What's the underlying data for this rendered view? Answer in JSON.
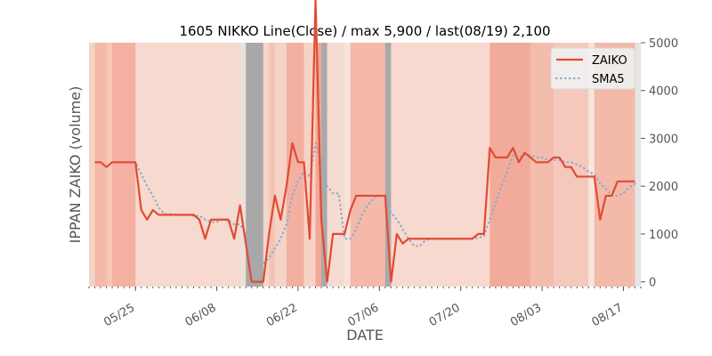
{
  "chart_data": {
    "type": "line",
    "title": "1605 NIKKO Line(Close) / max 5,900 / last(08/19) 2,100",
    "xlabel": "DATE",
    "ylabel": "IPPAN ZAIKO (volume)",
    "ylim": [
      -100,
      5000
    ],
    "yticks": [
      0,
      1000,
      2000,
      3000,
      4000,
      5000
    ],
    "ytick_labels": [
      "0",
      "1000",
      "2000",
      "3000",
      "4000",
      "5000"
    ],
    "y_axis_side": "right",
    "xlim": [
      "2020-05-17",
      "2020-08-20"
    ],
    "xticks": [
      "2020-05-25",
      "2020-06-08",
      "2020-06-22",
      "2020-07-06",
      "2020-07-20",
      "2020-08-03",
      "2020-08-17"
    ],
    "xtick_labels": [
      "05/25",
      "06/08",
      "06/22",
      "07/06",
      "07/20",
      "08/03",
      "08/17"
    ],
    "grid": false,
    "legend_position": "top-right",
    "background_color": "#e5e5e5",
    "series": [
      {
        "name": "ZAIKO",
        "color": "#e24a33",
        "style": "solid",
        "points": [
          [
            "2020-05-18",
            2500
          ],
          [
            "2020-05-19",
            2500
          ],
          [
            "2020-05-20",
            2400
          ],
          [
            "2020-05-21",
            2500
          ],
          [
            "2020-05-22",
            2500
          ],
          [
            "2020-05-23",
            2500
          ],
          [
            "2020-05-24",
            2500
          ],
          [
            "2020-05-25",
            2500
          ],
          [
            "2020-05-26",
            1500
          ],
          [
            "2020-05-27",
            1300
          ],
          [
            "2020-05-28",
            1500
          ],
          [
            "2020-05-29",
            1400
          ],
          [
            "2020-05-30",
            1400
          ],
          [
            "2020-05-31",
            1400
          ],
          [
            "2020-06-01",
            1400
          ],
          [
            "2020-06-02",
            1400
          ],
          [
            "2020-06-03",
            1400
          ],
          [
            "2020-06-04",
            1400
          ],
          [
            "2020-06-05",
            1300
          ],
          [
            "2020-06-06",
            900
          ],
          [
            "2020-06-07",
            1300
          ],
          [
            "2020-06-08",
            1300
          ],
          [
            "2020-06-09",
            1300
          ],
          [
            "2020-06-10",
            1300
          ],
          [
            "2020-06-11",
            900
          ],
          [
            "2020-06-12",
            1600
          ],
          [
            "2020-06-13",
            800
          ],
          [
            "2020-06-14",
            0
          ],
          [
            "2020-06-15",
            0
          ],
          [
            "2020-06-16",
            0
          ],
          [
            "2020-06-17",
            1000
          ],
          [
            "2020-06-18",
            1800
          ],
          [
            "2020-06-19",
            1300
          ],
          [
            "2020-06-20",
            2000
          ],
          [
            "2020-06-21",
            2900
          ],
          [
            "2020-06-22",
            2500
          ],
          [
            "2020-06-23",
            2500
          ],
          [
            "2020-06-24",
            900
          ],
          [
            "2020-06-25",
            5900
          ],
          [
            "2020-06-26",
            1300
          ],
          [
            "2020-06-27",
            0
          ],
          [
            "2020-06-28",
            1000
          ],
          [
            "2020-06-29",
            1000
          ],
          [
            "2020-06-30",
            1000
          ],
          [
            "2020-07-01",
            1500
          ],
          [
            "2020-07-02",
            1800
          ],
          [
            "2020-07-03",
            1800
          ],
          [
            "2020-07-04",
            1800
          ],
          [
            "2020-07-05",
            1800
          ],
          [
            "2020-07-06",
            1800
          ],
          [
            "2020-07-07",
            1800
          ],
          [
            "2020-07-08",
            0
          ],
          [
            "2020-07-09",
            1000
          ],
          [
            "2020-07-10",
            800
          ],
          [
            "2020-07-11",
            900
          ],
          [
            "2020-07-12",
            900
          ],
          [
            "2020-07-13",
            900
          ],
          [
            "2020-07-14",
            900
          ],
          [
            "2020-07-15",
            900
          ],
          [
            "2020-07-16",
            900
          ],
          [
            "2020-07-17",
            900
          ],
          [
            "2020-07-18",
            900
          ],
          [
            "2020-07-19",
            900
          ],
          [
            "2020-07-20",
            900
          ],
          [
            "2020-07-21",
            900
          ],
          [
            "2020-07-22",
            900
          ],
          [
            "2020-07-23",
            1000
          ],
          [
            "2020-07-24",
            1000
          ],
          [
            "2020-07-25",
            2800
          ],
          [
            "2020-07-26",
            2600
          ],
          [
            "2020-07-27",
            2600
          ],
          [
            "2020-07-28",
            2600
          ],
          [
            "2020-07-29",
            2800
          ],
          [
            "2020-07-30",
            2500
          ],
          [
            "2020-07-31",
            2700
          ],
          [
            "2020-08-01",
            2600
          ],
          [
            "2020-08-02",
            2500
          ],
          [
            "2020-08-03",
            2500
          ],
          [
            "2020-08-04",
            2500
          ],
          [
            "2020-08-05",
            2600
          ],
          [
            "2020-08-06",
            2600
          ],
          [
            "2020-08-07",
            2400
          ],
          [
            "2020-08-08",
            2400
          ],
          [
            "2020-08-09",
            2200
          ],
          [
            "2020-08-10",
            2200
          ],
          [
            "2020-08-11",
            2200
          ],
          [
            "2020-08-12",
            2200
          ],
          [
            "2020-08-13",
            1300
          ],
          [
            "2020-08-14",
            1800
          ],
          [
            "2020-08-15",
            1800
          ],
          [
            "2020-08-16",
            2100
          ],
          [
            "2020-08-17",
            2100
          ],
          [
            "2020-08-18",
            2100
          ],
          [
            "2020-08-19",
            2100
          ]
        ]
      },
      {
        "name": "SMA5",
        "color": "#8eaacb",
        "style": "dotted",
        "points": [
          [
            "2020-05-24",
            2500
          ],
          [
            "2020-05-25",
            2500
          ],
          [
            "2020-05-26",
            2250
          ],
          [
            "2020-05-27",
            2000
          ],
          [
            "2020-05-28",
            1800
          ],
          [
            "2020-05-29",
            1550
          ],
          [
            "2020-05-30",
            1420
          ],
          [
            "2020-05-31",
            1420
          ],
          [
            "2020-06-01",
            1400
          ],
          [
            "2020-06-02",
            1400
          ],
          [
            "2020-06-03",
            1400
          ],
          [
            "2020-06-04",
            1380
          ],
          [
            "2020-06-05",
            1380
          ],
          [
            "2020-06-06",
            1300
          ],
          [
            "2020-06-07",
            1250
          ],
          [
            "2020-06-08",
            1250
          ],
          [
            "2020-06-09",
            1300
          ],
          [
            "2020-06-10",
            1280
          ],
          [
            "2020-06-11",
            1200
          ],
          [
            "2020-06-12",
            1200
          ],
          [
            "2020-06-13",
            1000
          ],
          [
            "2020-06-14",
            700
          ],
          [
            "2020-06-15",
            500
          ],
          [
            "2020-06-16",
            380
          ],
          [
            "2020-06-17",
            500
          ],
          [
            "2020-06-18",
            700
          ],
          [
            "2020-06-19",
            900
          ],
          [
            "2020-06-20",
            1200
          ],
          [
            "2020-06-21",
            1800
          ],
          [
            "2020-06-22",
            2100
          ],
          [
            "2020-06-23",
            2300
          ],
          [
            "2020-06-24",
            2200
          ],
          [
            "2020-06-25",
            2900
          ],
          [
            "2020-06-26",
            2500
          ],
          [
            "2020-06-27",
            2000
          ],
          [
            "2020-06-28",
            1850
          ],
          [
            "2020-06-29",
            1850
          ],
          [
            "2020-06-30",
            900
          ],
          [
            "2020-07-01",
            900
          ],
          [
            "2020-07-02",
            1100
          ],
          [
            "2020-07-03",
            1400
          ],
          [
            "2020-07-04",
            1600
          ],
          [
            "2020-07-05",
            1750
          ],
          [
            "2020-07-06",
            1800
          ],
          [
            "2020-07-07",
            1800
          ],
          [
            "2020-07-08",
            1450
          ],
          [
            "2020-07-09",
            1300
          ],
          [
            "2020-07-10",
            1100
          ],
          [
            "2020-07-11",
            900
          ],
          [
            "2020-07-12",
            750
          ],
          [
            "2020-07-13",
            750
          ],
          [
            "2020-07-14",
            880
          ],
          [
            "2020-07-15",
            900
          ],
          [
            "2020-07-16",
            900
          ],
          [
            "2020-07-17",
            900
          ],
          [
            "2020-07-18",
            900
          ],
          [
            "2020-07-19",
            900
          ],
          [
            "2020-07-20",
            900
          ],
          [
            "2020-07-21",
            900
          ],
          [
            "2020-07-22",
            900
          ],
          [
            "2020-07-23",
            920
          ],
          [
            "2020-07-24",
            950
          ],
          [
            "2020-07-25",
            1300
          ],
          [
            "2020-07-26",
            1650
          ],
          [
            "2020-07-27",
            2000
          ],
          [
            "2020-07-28",
            2300
          ],
          [
            "2020-07-29",
            2650
          ],
          [
            "2020-07-30",
            2600
          ],
          [
            "2020-07-31",
            2650
          ],
          [
            "2020-08-01",
            2650
          ],
          [
            "2020-08-02",
            2600
          ],
          [
            "2020-08-03",
            2600
          ],
          [
            "2020-08-04",
            2550
          ],
          [
            "2020-08-05",
            2550
          ],
          [
            "2020-08-06",
            2550
          ],
          [
            "2020-08-07",
            2500
          ],
          [
            "2020-08-08",
            2500
          ],
          [
            "2020-08-09",
            2450
          ],
          [
            "2020-08-10",
            2400
          ],
          [
            "2020-08-11",
            2300
          ],
          [
            "2020-08-12",
            2250
          ],
          [
            "2020-08-13",
            2050
          ],
          [
            "2020-08-14",
            1950
          ],
          [
            "2020-08-15",
            1800
          ],
          [
            "2020-08-16",
            1800
          ],
          [
            "2020-08-17",
            1850
          ],
          [
            "2020-08-18",
            1980
          ],
          [
            "2020-08-19",
            2050
          ]
        ]
      }
    ],
    "background_bands": [
      {
        "start": "2020-05-17",
        "end": "2020-05-18",
        "color": "#f2d4c6"
      },
      {
        "start": "2020-05-18",
        "end": "2020-05-20",
        "color": "#f4b9a8"
      },
      {
        "start": "2020-05-20",
        "end": "2020-05-21",
        "color": "#f6c7b8"
      },
      {
        "start": "2020-05-21",
        "end": "2020-05-25",
        "color": "#f4b0a0"
      },
      {
        "start": "2020-05-25",
        "end": "2020-06-10",
        "color": "#f7d9cf"
      },
      {
        "start": "2020-06-10",
        "end": "2020-06-12",
        "color": "#f4dbd0"
      },
      {
        "start": "2020-06-12",
        "end": "2020-06-13",
        "color": "#efe0d8"
      },
      {
        "start": "2020-06-13",
        "end": "2020-06-16",
        "color": "#a9a9a9"
      },
      {
        "start": "2020-06-16",
        "end": "2020-06-17",
        "color": "#f5d6cb"
      },
      {
        "start": "2020-06-17",
        "end": "2020-06-18",
        "color": "#f3c3b4"
      },
      {
        "start": "2020-06-18",
        "end": "2020-06-20",
        "color": "#f5d3c7"
      },
      {
        "start": "2020-06-20",
        "end": "2020-06-23",
        "color": "#f3b0a1"
      },
      {
        "start": "2020-06-23",
        "end": "2020-06-25",
        "color": "#f6d3c6"
      },
      {
        "start": "2020-06-25",
        "end": "2020-06-26",
        "color": "#f2a696"
      },
      {
        "start": "2020-06-26",
        "end": "2020-06-27",
        "color": "#a9a9a9"
      },
      {
        "start": "2020-06-27",
        "end": "2020-06-30",
        "color": "#f5dbd1"
      },
      {
        "start": "2020-06-30",
        "end": "2020-07-01",
        "color": "#f7e3db"
      },
      {
        "start": "2020-07-01",
        "end": "2020-07-07",
        "color": "#f4b9a8"
      },
      {
        "start": "2020-07-07",
        "end": "2020-07-08",
        "color": "#a9a9a9"
      },
      {
        "start": "2020-07-08",
        "end": "2020-07-25",
        "color": "#f7d9cf"
      },
      {
        "start": "2020-07-25",
        "end": "2020-08-01",
        "color": "#f2ab9a"
      },
      {
        "start": "2020-08-01",
        "end": "2020-08-05",
        "color": "#f4bcac"
      },
      {
        "start": "2020-08-05",
        "end": "2020-08-11",
        "color": "#f4c9bc"
      },
      {
        "start": "2020-08-11",
        "end": "2020-08-12",
        "color": "#f8e5de"
      },
      {
        "start": "2020-08-12",
        "end": "2020-08-19",
        "color": "#f3b9a9"
      },
      {
        "start": "2020-08-19",
        "end": "2020-08-20",
        "color": "#e5e5e5"
      }
    ]
  }
}
